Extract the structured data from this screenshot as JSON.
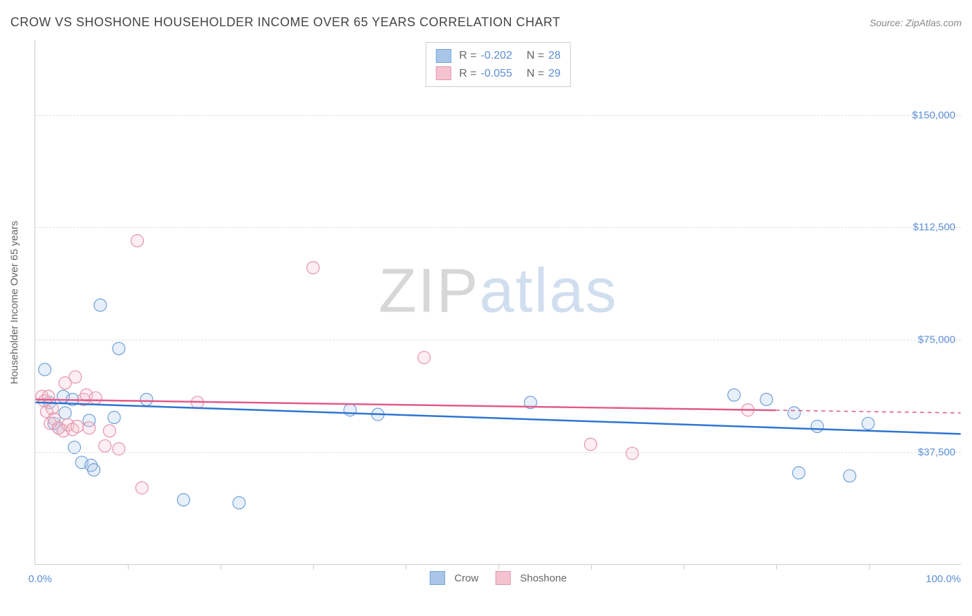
{
  "title": "CROW VS SHOSHONE HOUSEHOLDER INCOME OVER 65 YEARS CORRELATION CHART",
  "source_label": "Source: ",
  "source_name": "ZipAtlas.com",
  "yaxis_title": "Householder Income Over 65 years",
  "watermark_a": "ZIP",
  "watermark_b": "atlas",
  "chart": {
    "type": "scatter-with-regression",
    "background_color": "#ffffff",
    "grid_color": "#dddddd",
    "axis_color": "#cccccc",
    "text_color": "#666666",
    "value_color": "#5b8fd6",
    "xlim": [
      0,
      100
    ],
    "ylim": [
      0,
      175000
    ],
    "y_gridlines": [
      37500,
      75000,
      112500,
      150000
    ],
    "y_labels": [
      "$37,500",
      "$75,000",
      "$112,500",
      "$150,000"
    ],
    "x_ticks": [
      10,
      20,
      30,
      40,
      50,
      60,
      70,
      80,
      90
    ],
    "x_label_min": "0.0%",
    "x_label_max": "100.0%",
    "marker_radius": 9,
    "marker_stroke_width": 1.2,
    "marker_fill_opacity": 0.28,
    "line_width_regression": 2.5,
    "series": [
      {
        "name": "Crow",
        "color_stroke": "#6f9fd8",
        "color_fill": "#a9c6e8",
        "line_color": "#2e74d0",
        "R": -0.202,
        "R_display": "-0.202",
        "N": 28,
        "regression": {
          "y_at_x0": 54000,
          "y_at_x100": 43500
        },
        "points": [
          {
            "x": 1.0,
            "y": 65000
          },
          {
            "x": 1.5,
            "y": 54000
          },
          {
            "x": 2.0,
            "y": 47000
          },
          {
            "x": 2.5,
            "y": 45500
          },
          {
            "x": 3.0,
            "y": 56000
          },
          {
            "x": 3.2,
            "y": 50500
          },
          {
            "x": 4.0,
            "y": 55000
          },
          {
            "x": 4.2,
            "y": 39000
          },
          {
            "x": 5.0,
            "y": 34000
          },
          {
            "x": 5.8,
            "y": 48000
          },
          {
            "x": 6.0,
            "y": 33000
          },
          {
            "x": 6.3,
            "y": 31500
          },
          {
            "x": 7.0,
            "y": 86500
          },
          {
            "x": 8.5,
            "y": 49000
          },
          {
            "x": 9.0,
            "y": 72000
          },
          {
            "x": 12.0,
            "y": 55000
          },
          {
            "x": 16.0,
            "y": 21500
          },
          {
            "x": 22.0,
            "y": 20500
          },
          {
            "x": 34.0,
            "y": 51500
          },
          {
            "x": 37.0,
            "y": 50000
          },
          {
            "x": 53.5,
            "y": 54000
          },
          {
            "x": 75.5,
            "y": 56500
          },
          {
            "x": 79.0,
            "y": 55000
          },
          {
            "x": 82.0,
            "y": 50500
          },
          {
            "x": 84.5,
            "y": 46000
          },
          {
            "x": 82.5,
            "y": 30500
          },
          {
            "x": 88.0,
            "y": 29500
          },
          {
            "x": 90.0,
            "y": 47000
          }
        ]
      },
      {
        "name": "Shoshone",
        "color_stroke": "#e594ab",
        "color_fill": "#f4c2d0",
        "line_color": "#e05a8a",
        "R": -0.055,
        "R_display": "-0.055",
        "N": 29,
        "regression": {
          "y_at_x0": 55000,
          "y_at_x100": 50500,
          "extend_dash_from_x": 80
        },
        "points": [
          {
            "x": 0.7,
            "y": 56000
          },
          {
            "x": 1.0,
            "y": 54500
          },
          {
            "x": 1.2,
            "y": 51000
          },
          {
            "x": 1.4,
            "y": 56000
          },
          {
            "x": 1.6,
            "y": 47000
          },
          {
            "x": 1.8,
            "y": 52000
          },
          {
            "x": 2.0,
            "y": 48500
          },
          {
            "x": 2.5,
            "y": 45500
          },
          {
            "x": 3.0,
            "y": 44500
          },
          {
            "x": 3.2,
            "y": 60500
          },
          {
            "x": 3.5,
            "y": 46500
          },
          {
            "x": 4.0,
            "y": 45000
          },
          {
            "x": 4.3,
            "y": 62500
          },
          {
            "x": 4.5,
            "y": 46000
          },
          {
            "x": 5.2,
            "y": 55000
          },
          {
            "x": 5.5,
            "y": 56500
          },
          {
            "x": 5.8,
            "y": 45500
          },
          {
            "x": 6.5,
            "y": 55500
          },
          {
            "x": 7.5,
            "y": 39500
          },
          {
            "x": 8.0,
            "y": 44500
          },
          {
            "x": 9.0,
            "y": 38500
          },
          {
            "x": 11.0,
            "y": 108000
          },
          {
            "x": 11.5,
            "y": 25500
          },
          {
            "x": 17.5,
            "y": 54000
          },
          {
            "x": 30.0,
            "y": 99000
          },
          {
            "x": 42.0,
            "y": 69000
          },
          {
            "x": 60.0,
            "y": 40000
          },
          {
            "x": 64.5,
            "y": 37000
          },
          {
            "x": 77.0,
            "y": 51500
          }
        ]
      }
    ],
    "legend_top": {
      "r_label": "R =",
      "n_label": "N ="
    },
    "legend_bottom": [
      "Crow",
      "Shoshone"
    ]
  }
}
